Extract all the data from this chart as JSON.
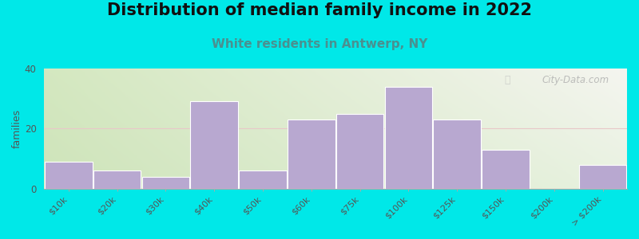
{
  "title": "Distribution of median family income in 2022",
  "subtitle": "White residents in Antwerp, NY",
  "ylabel": "families",
  "categories": [
    "$10k",
    "$20k",
    "$30k",
    "$40k",
    "$50k",
    "$60k",
    "$75k",
    "$100k",
    "$125k",
    "$150k",
    "$200k",
    "> $200k"
  ],
  "values": [
    9,
    6,
    4,
    29,
    6,
    23,
    25,
    34,
    23,
    13,
    0,
    8
  ],
  "bar_color": "#b8a8d0",
  "bar_edgecolor": "#ffffff",
  "background_outer": "#00e8e8",
  "bg_topleft": "#d4e8c0",
  "bg_topright": "#f0f0ee",
  "bg_bottomleft": "#d4e8c0",
  "bg_bottomright": "#e8f0e0",
  "ylim": [
    0,
    40
  ],
  "yticks": [
    0,
    20,
    40
  ],
  "gridline_color": "#e8c8c8",
  "title_fontsize": 15,
  "subtitle_fontsize": 11,
  "subtitle_color": "#4a9090",
  "ylabel_fontsize": 9,
  "watermark": "City-Data.com",
  "figsize": [
    8.0,
    3.0
  ],
  "dpi": 100
}
